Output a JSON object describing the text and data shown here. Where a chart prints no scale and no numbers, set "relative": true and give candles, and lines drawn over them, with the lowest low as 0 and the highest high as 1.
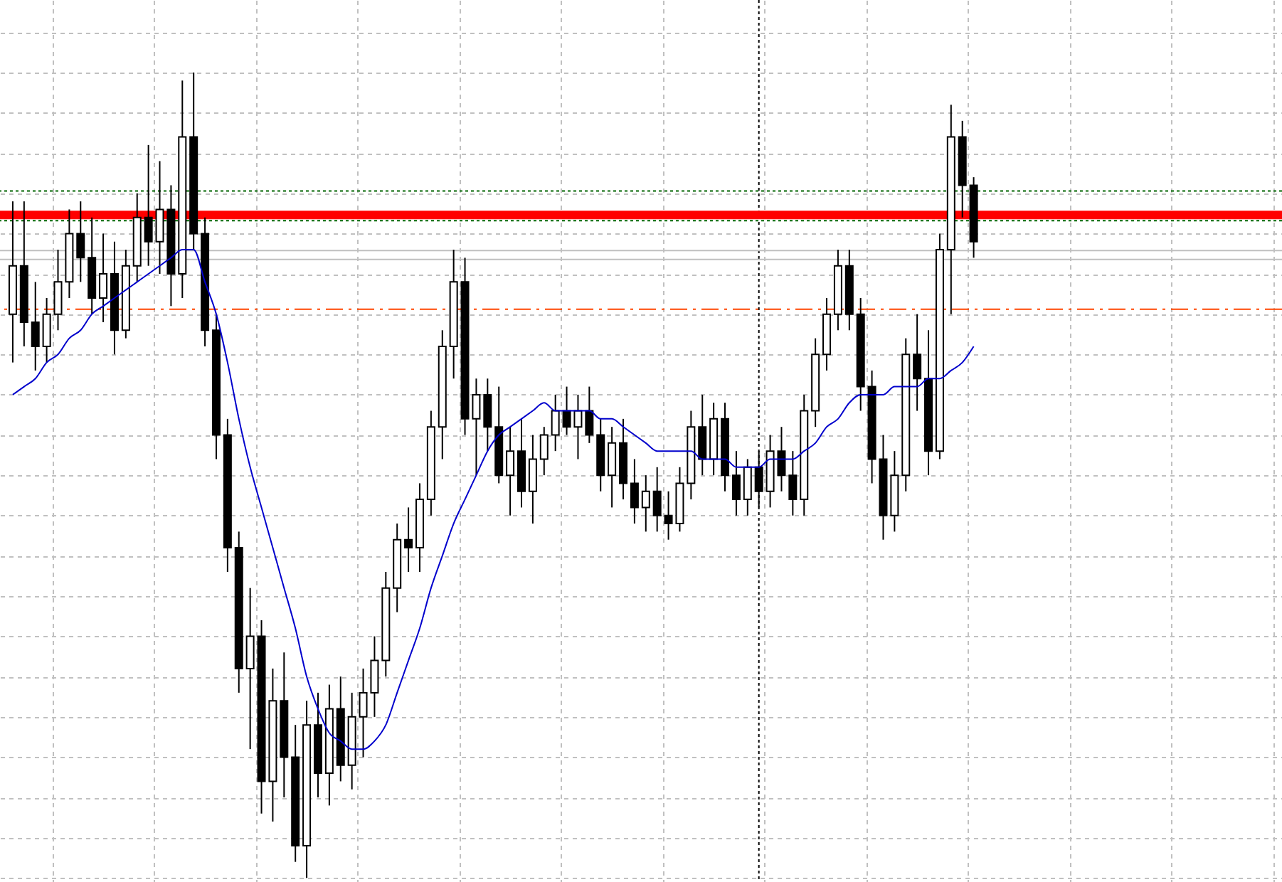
{
  "chart_data": {
    "type": "candlestick",
    "relative": true,
    "grid": true,
    "categories": [
      null,
      null,
      null,
      null,
      null,
      null,
      null,
      null,
      null,
      null,
      null,
      null,
      null,
      null,
      null,
      null,
      null,
      null,
      null,
      null,
      null,
      null,
      null,
      null,
      null,
      null,
      null,
      null,
      null,
      null,
      null,
      null,
      null,
      null,
      null,
      null,
      null,
      null,
      null,
      null,
      null,
      null,
      null,
      null,
      null,
      null,
      null,
      null,
      null,
      null,
      null,
      null,
      null,
      null,
      null,
      null,
      null,
      null,
      null,
      null,
      null,
      null,
      null,
      null,
      null,
      null,
      null,
      null,
      null,
      null,
      null,
      null,
      null,
      null,
      null,
      null,
      null,
      null,
      null,
      null,
      null,
      null,
      null,
      null,
      null,
      null
    ],
    "ohlc": [
      [
        0.7,
        0.84,
        0.64,
        0.76
      ],
      [
        0.76,
        0.84,
        0.66,
        0.69
      ],
      [
        0.69,
        0.74,
        0.63,
        0.66
      ],
      [
        0.66,
        0.72,
        0.64,
        0.7
      ],
      [
        0.7,
        0.78,
        0.68,
        0.74
      ],
      [
        0.74,
        0.83,
        0.72,
        0.8
      ],
      [
        0.8,
        0.84,
        0.74,
        0.77
      ],
      [
        0.77,
        0.82,
        0.7,
        0.72
      ],
      [
        0.72,
        0.8,
        0.69,
        0.75
      ],
      [
        0.75,
        0.79,
        0.65,
        0.68
      ],
      [
        0.68,
        0.78,
        0.67,
        0.76
      ],
      [
        0.76,
        0.85,
        0.74,
        0.82
      ],
      [
        0.82,
        0.91,
        0.76,
        0.79
      ],
      [
        0.79,
        0.89,
        0.75,
        0.83
      ],
      [
        0.83,
        0.86,
        0.71,
        0.75
      ],
      [
        0.75,
        0.99,
        0.72,
        0.92
      ],
      [
        0.92,
        1.0,
        0.78,
        0.8
      ],
      [
        0.8,
        0.82,
        0.66,
        0.68
      ],
      [
        0.68,
        0.7,
        0.52,
        0.55
      ],
      [
        0.55,
        0.57,
        0.38,
        0.41
      ],
      [
        0.41,
        0.43,
        0.23,
        0.26
      ],
      [
        0.26,
        0.36,
        0.16,
        0.3
      ],
      [
        0.3,
        0.32,
        0.08,
        0.12
      ],
      [
        0.12,
        0.26,
        0.07,
        0.22
      ],
      [
        0.22,
        0.28,
        0.1,
        0.15
      ],
      [
        0.15,
        0.19,
        0.02,
        0.04
      ],
      [
        0.04,
        0.22,
        0.0,
        0.19
      ],
      [
        0.19,
        0.23,
        0.1,
        0.13
      ],
      [
        0.13,
        0.24,
        0.09,
        0.21
      ],
      [
        0.21,
        0.25,
        0.12,
        0.14
      ],
      [
        0.14,
        0.23,
        0.11,
        0.2
      ],
      [
        0.2,
        0.26,
        0.15,
        0.23
      ],
      [
        0.23,
        0.3,
        0.2,
        0.27
      ],
      [
        0.27,
        0.38,
        0.25,
        0.36
      ],
      [
        0.36,
        0.44,
        0.33,
        0.42
      ],
      [
        0.42,
        0.46,
        0.38,
        0.41
      ],
      [
        0.41,
        0.49,
        0.38,
        0.47
      ],
      [
        0.47,
        0.58,
        0.45,
        0.56
      ],
      [
        0.56,
        0.68,
        0.52,
        0.66
      ],
      [
        0.66,
        0.78,
        0.62,
        0.74
      ],
      [
        0.74,
        0.77,
        0.55,
        0.57
      ],
      [
        0.57,
        0.62,
        0.5,
        0.6
      ],
      [
        0.6,
        0.62,
        0.53,
        0.56
      ],
      [
        0.56,
        0.61,
        0.49,
        0.5
      ],
      [
        0.5,
        0.56,
        0.45,
        0.53
      ],
      [
        0.53,
        0.57,
        0.46,
        0.48
      ],
      [
        0.48,
        0.55,
        0.44,
        0.52
      ],
      [
        0.52,
        0.56,
        0.5,
        0.55
      ],
      [
        0.55,
        0.6,
        0.53,
        0.58
      ],
      [
        0.58,
        0.61,
        0.55,
        0.56
      ],
      [
        0.56,
        0.6,
        0.52,
        0.58
      ],
      [
        0.58,
        0.61,
        0.54,
        0.55
      ],
      [
        0.55,
        0.57,
        0.48,
        0.5
      ],
      [
        0.5,
        0.56,
        0.46,
        0.54
      ],
      [
        0.54,
        0.57,
        0.47,
        0.49
      ],
      [
        0.49,
        0.52,
        0.44,
        0.46
      ],
      [
        0.46,
        0.5,
        0.43,
        0.48
      ],
      [
        0.48,
        0.51,
        0.43,
        0.45
      ],
      [
        0.45,
        0.48,
        0.42,
        0.44
      ],
      [
        0.44,
        0.51,
        0.43,
        0.49
      ],
      [
        0.49,
        0.58,
        0.47,
        0.56
      ],
      [
        0.56,
        0.6,
        0.5,
        0.52
      ],
      [
        0.52,
        0.59,
        0.5,
        0.57
      ],
      [
        0.57,
        0.59,
        0.48,
        0.5
      ],
      [
        0.5,
        0.53,
        0.45,
        0.47
      ],
      [
        0.47,
        0.52,
        0.45,
        0.51
      ],
      [
        0.51,
        0.53,
        0.46,
        0.48
      ],
      [
        0.48,
        0.55,
        0.46,
        0.53
      ],
      [
        0.53,
        0.56,
        0.48,
        0.5
      ],
      [
        0.5,
        0.53,
        0.45,
        0.47
      ],
      [
        0.47,
        0.6,
        0.45,
        0.58
      ],
      [
        0.58,
        0.67,
        0.56,
        0.65
      ],
      [
        0.65,
        0.72,
        0.63,
        0.7
      ],
      [
        0.7,
        0.78,
        0.68,
        0.76
      ],
      [
        0.76,
        0.78,
        0.68,
        0.7
      ],
      [
        0.7,
        0.72,
        0.58,
        0.61
      ],
      [
        0.61,
        0.63,
        0.49,
        0.52
      ],
      [
        0.52,
        0.55,
        0.42,
        0.45
      ],
      [
        0.45,
        0.53,
        0.43,
        0.5
      ],
      [
        0.5,
        0.67,
        0.48,
        0.65
      ],
      [
        0.65,
        0.7,
        0.58,
        0.62
      ],
      [
        0.62,
        0.68,
        0.5,
        0.53
      ],
      [
        0.53,
        0.8,
        0.52,
        0.78
      ],
      [
        0.78,
        0.96,
        0.7,
        0.92
      ],
      [
        0.92,
        0.94,
        0.82,
        0.86
      ],
      [
        0.86,
        0.87,
        0.77,
        0.79
      ]
    ],
    "series": [
      {
        "type": "line",
        "color": "#0000cc",
        "values": [
          0.6,
          0.61,
          0.62,
          0.64,
          0.65,
          0.67,
          0.68,
          0.7,
          0.71,
          0.72,
          0.73,
          0.74,
          0.75,
          0.76,
          0.77,
          0.78,
          0.78,
          0.74,
          0.7,
          0.64,
          0.57,
          0.51,
          0.46,
          0.41,
          0.36,
          0.31,
          0.25,
          0.21,
          0.18,
          0.17,
          0.16,
          0.16,
          0.17,
          0.19,
          0.23,
          0.27,
          0.31,
          0.36,
          0.4,
          0.44,
          0.47,
          0.5,
          0.53,
          0.55,
          0.56,
          0.57,
          0.58,
          0.59,
          0.58,
          0.58,
          0.58,
          0.58,
          0.57,
          0.57,
          0.56,
          0.55,
          0.54,
          0.53,
          0.53,
          0.53,
          0.53,
          0.52,
          0.52,
          0.52,
          0.51,
          0.51,
          0.51,
          0.52,
          0.52,
          0.52,
          0.53,
          0.54,
          0.56,
          0.57,
          0.59,
          0.6,
          0.6,
          0.6,
          0.61,
          0.61,
          0.61,
          0.62,
          0.62,
          0.63,
          0.64,
          0.66
        ]
      }
    ],
    "ref_lines": [
      {
        "axis": "y",
        "value": 0.823,
        "color": "#ff0000",
        "line_style": "solid"
      },
      {
        "axis": "y",
        "value": 0.853,
        "color": "#006400",
        "line_style": "dotted"
      },
      {
        "axis": "y",
        "value": 0.816,
        "color": "#006400",
        "line_style": "dotted"
      },
      {
        "axis": "y",
        "value": 0.779,
        "color": "#c0c0c0",
        "line_style": "solid"
      },
      {
        "axis": "y",
        "value": 0.768,
        "color": "#c0c0c0",
        "line_style": "solid"
      },
      {
        "axis": "y",
        "value": 0.706,
        "color": "#ff4500",
        "line_style": "dashed"
      }
    ]
  }
}
